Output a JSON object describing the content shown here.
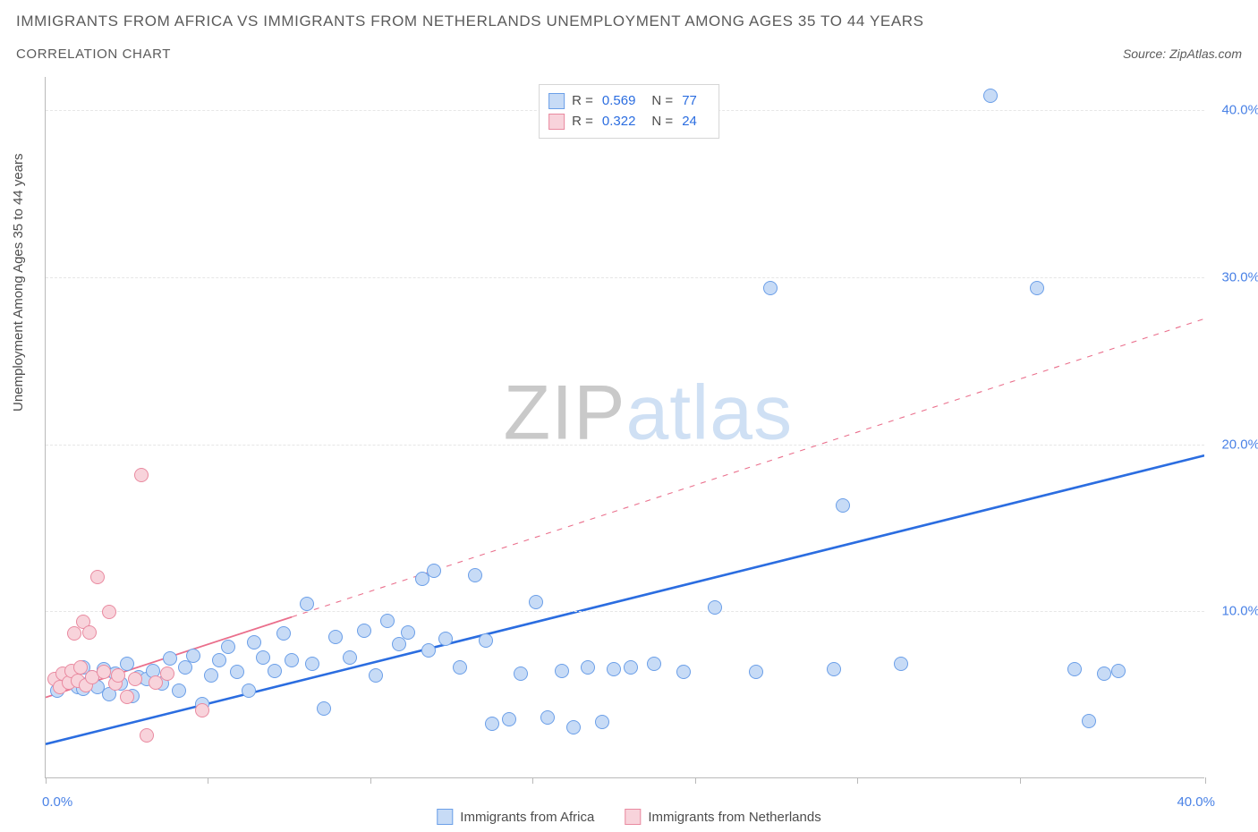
{
  "title": "IMMIGRANTS FROM AFRICA VS IMMIGRANTS FROM NETHERLANDS UNEMPLOYMENT AMONG AGES 35 TO 44 YEARS",
  "subtitle": "CORRELATION CHART",
  "source_prefix": "Source: ",
  "source_name": "ZipAtlas.com",
  "y_axis_label": "Unemployment Among Ages 35 to 44 years",
  "watermark": {
    "part1": "ZIP",
    "part2": "atlas"
  },
  "chart": {
    "type": "scatter",
    "background_color": "#ffffff",
    "axis_color": "#b9b9b9",
    "grid_color": "#e6e6e6",
    "tick_label_color": "#4a82e6",
    "axis_label_color": "#4d4d4d",
    "xlim": [
      0,
      40
    ],
    "ylim": [
      0,
      42
    ],
    "x_tick_positions": [
      0,
      5.6,
      11.2,
      16.8,
      22.4,
      28.0,
      33.6,
      40.0
    ],
    "x_labels": {
      "min": "0.0%",
      "max": "40.0%"
    },
    "y_ticks": [
      {
        "v": 10,
        "label": "10.0%"
      },
      {
        "v": 20,
        "label": "20.0%"
      },
      {
        "v": 30,
        "label": "30.0%"
      },
      {
        "v": 40,
        "label": "40.0%"
      }
    ],
    "marker_radius": 8,
    "series": [
      {
        "id": "africa",
        "label": "Immigrants from Africa",
        "R": "0.569",
        "N": "77",
        "fill": "#c7dbf6",
        "stroke": "#6b9fe8",
        "trend": {
          "x1": 0,
          "y1": 2.0,
          "x2": 40,
          "y2": 19.3,
          "solid_until_x": 40,
          "width": 2.6,
          "color": "#2b6de0"
        },
        "points": [
          [
            0.4,
            5.2
          ],
          [
            0.5,
            5.7
          ],
          [
            0.7,
            5.8
          ],
          [
            0.9,
            6.0
          ],
          [
            1.1,
            5.4
          ],
          [
            1.3,
            5.3
          ],
          [
            1.3,
            6.6
          ],
          [
            1.5,
            5.7
          ],
          [
            1.6,
            6.0
          ],
          [
            1.8,
            5.4
          ],
          [
            2.0,
            6.5
          ],
          [
            2.2,
            5.0
          ],
          [
            2.4,
            6.2
          ],
          [
            2.6,
            5.6
          ],
          [
            2.8,
            6.8
          ],
          [
            3.0,
            4.9
          ],
          [
            3.2,
            6.0
          ],
          [
            3.5,
            5.9
          ],
          [
            3.7,
            6.4
          ],
          [
            4.0,
            5.6
          ],
          [
            4.3,
            7.1
          ],
          [
            4.6,
            5.2
          ],
          [
            4.8,
            6.6
          ],
          [
            5.1,
            7.3
          ],
          [
            5.4,
            4.4
          ],
          [
            5.7,
            6.1
          ],
          [
            6.0,
            7.0
          ],
          [
            6.3,
            7.8
          ],
          [
            6.6,
            6.3
          ],
          [
            7.0,
            5.2
          ],
          [
            7.2,
            8.1
          ],
          [
            7.5,
            7.2
          ],
          [
            7.9,
            6.4
          ],
          [
            8.2,
            8.6
          ],
          [
            8.5,
            7.0
          ],
          [
            9.0,
            10.4
          ],
          [
            9.2,
            6.8
          ],
          [
            9.6,
            4.1
          ],
          [
            10.0,
            8.4
          ],
          [
            10.5,
            7.2
          ],
          [
            11.0,
            8.8
          ],
          [
            11.4,
            6.1
          ],
          [
            11.8,
            9.4
          ],
          [
            12.2,
            8.0
          ],
          [
            12.5,
            8.7
          ],
          [
            13.0,
            11.9
          ],
          [
            13.2,
            7.6
          ],
          [
            13.4,
            12.4
          ],
          [
            13.8,
            8.3
          ],
          [
            14.3,
            6.6
          ],
          [
            14.8,
            12.1
          ],
          [
            15.2,
            8.2
          ],
          [
            15.4,
            3.2
          ],
          [
            16.0,
            3.5
          ],
          [
            16.4,
            6.2
          ],
          [
            16.9,
            10.5
          ],
          [
            17.3,
            3.6
          ],
          [
            17.8,
            6.4
          ],
          [
            18.2,
            3.0
          ],
          [
            18.7,
            6.6
          ],
          [
            19.2,
            3.3
          ],
          [
            19.6,
            6.5
          ],
          [
            20.2,
            6.6
          ],
          [
            21.0,
            6.8
          ],
          [
            22.0,
            6.3
          ],
          [
            23.1,
            10.2
          ],
          [
            24.5,
            6.3
          ],
          [
            25.0,
            29.3
          ],
          [
            27.2,
            6.5
          ],
          [
            27.5,
            16.3
          ],
          [
            29.5,
            6.8
          ],
          [
            32.6,
            40.8
          ],
          [
            34.2,
            29.3
          ],
          [
            35.5,
            6.5
          ],
          [
            36.0,
            3.4
          ],
          [
            36.5,
            6.2
          ],
          [
            37.0,
            6.4
          ]
        ]
      },
      {
        "id": "netherlands",
        "label": "Immigrants from Netherlands",
        "R": "0.322",
        "N": "24",
        "fill": "#f8d3db",
        "stroke": "#e98aa0",
        "trend": {
          "x1": 0,
          "y1": 4.8,
          "x2": 40,
          "y2": 27.5,
          "solid_until_x": 8.5,
          "width": 1.8,
          "color": "#ea6f8c"
        },
        "points": [
          [
            0.3,
            5.9
          ],
          [
            0.5,
            5.4
          ],
          [
            0.6,
            6.2
          ],
          [
            0.8,
            5.7
          ],
          [
            0.9,
            6.4
          ],
          [
            1.0,
            8.6
          ],
          [
            1.1,
            5.8
          ],
          [
            1.2,
            6.6
          ],
          [
            1.3,
            9.3
          ],
          [
            1.4,
            5.5
          ],
          [
            1.5,
            8.7
          ],
          [
            1.6,
            6.0
          ],
          [
            1.8,
            12.0
          ],
          [
            2.0,
            6.3
          ],
          [
            2.2,
            9.9
          ],
          [
            2.4,
            5.6
          ],
          [
            2.5,
            6.1
          ],
          [
            2.8,
            4.8
          ],
          [
            3.1,
            5.9
          ],
          [
            3.3,
            18.1
          ],
          [
            3.5,
            2.5
          ],
          [
            3.8,
            5.7
          ],
          [
            4.2,
            6.2
          ],
          [
            5.4,
            4.0
          ]
        ]
      }
    ]
  },
  "legend_top": {
    "border": "#d6d6d6",
    "R_label": "R =",
    "N_label": "N ="
  }
}
